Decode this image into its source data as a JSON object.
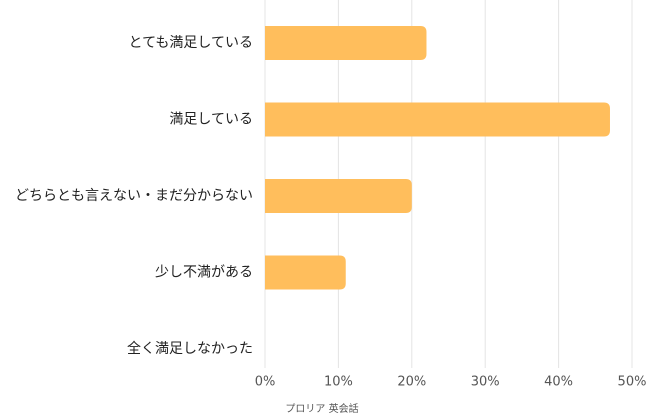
{
  "chart_data": {
    "type": "bar",
    "orientation": "horizontal",
    "caption": "プロリア 英会話",
    "categories": [
      "とても満足している",
      "満足している",
      "どちらとも言えない・まだ分からない",
      "少し不満がある",
      "全く満足しなかった"
    ],
    "values": [
      22,
      47,
      20,
      11,
      0
    ],
    "color": "#ffbe5c",
    "xlim": [
      0,
      50
    ],
    "xticks": [
      {
        "value": 0,
        "label": "0%"
      },
      {
        "value": 10,
        "label": "10%"
      },
      {
        "value": 20,
        "label": "20%"
      },
      {
        "value": 30,
        "label": "30%"
      },
      {
        "value": 40,
        "label": "40%"
      },
      {
        "value": 50,
        "label": "50%"
      }
    ],
    "grid": true
  }
}
